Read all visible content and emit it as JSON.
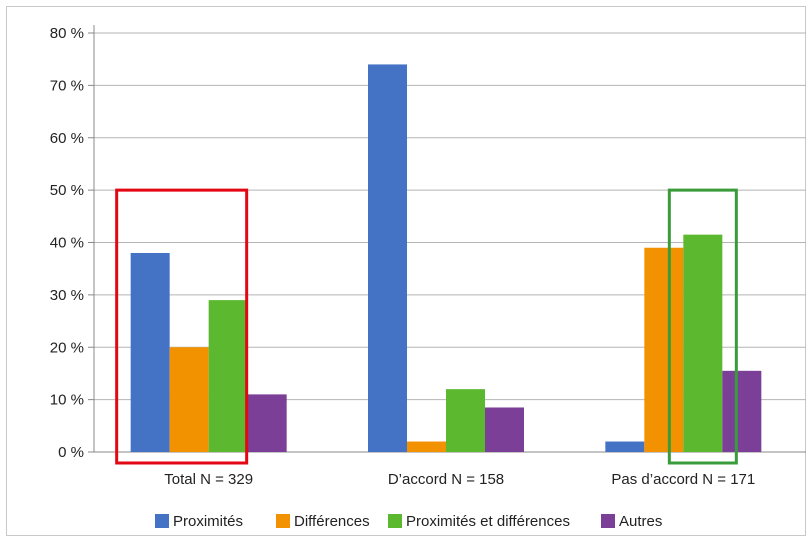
{
  "chart_data": {
    "type": "bar",
    "categories": [
      "Total N = 329",
      "D’accord N = 158",
      "Pas d’accord N = 171"
    ],
    "series": [
      {
        "name": "Proximités",
        "values": [
          38,
          74,
          2
        ],
        "color": "#4472c4"
      },
      {
        "name": "Différences",
        "values": [
          20,
          2,
          39
        ],
        "color": "#f39200"
      },
      {
        "name": "Proximités et différences",
        "values": [
          29,
          12,
          41.5
        ],
        "color": "#5cb82e"
      },
      {
        "name": "Autres",
        "values": [
          11,
          8.5,
          15.5
        ],
        "color": "#7b3f98"
      }
    ],
    "y_ticks": [
      "0 %",
      "10 %",
      "20 %",
      "30 %",
      "40 %",
      "50 %",
      "60 %",
      "70 %",
      "80 %"
    ],
    "ylim": [
      0,
      80
    ],
    "grid": true,
    "legend": "bottom",
    "highlight_boxes": [
      {
        "group": 0,
        "color": "#e30613",
        "y_top": 50
      },
      {
        "group": 2,
        "series": 2,
        "color": "#3a9b3a",
        "y_top": 50
      }
    ]
  }
}
